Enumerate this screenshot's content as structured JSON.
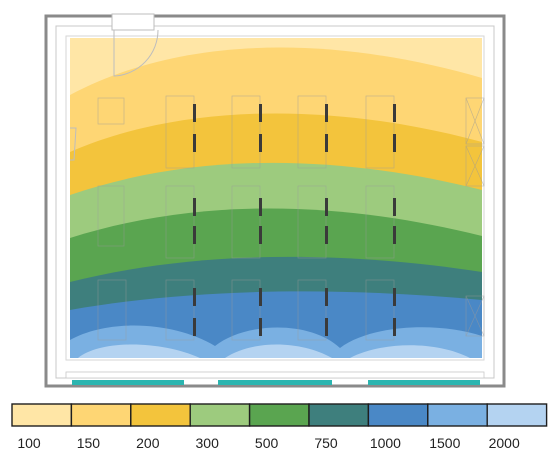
{
  "legend": {
    "swatch_colors": [
      "#ffe6a6",
      "#fed674",
      "#f3c43c",
      "#9dcb7e",
      "#5aa550",
      "#3e7f7d",
      "#4a88c6",
      "#7ab0e2",
      "#b4d3f1"
    ],
    "tick_labels": [
      "100",
      "150",
      "200",
      "300",
      "500",
      "750",
      "1000",
      "1500",
      "2000"
    ]
  },
  "zone_colors": [
    "#ffe6a6",
    "#fed674",
    "#f3c43c",
    "#9dcb7e",
    "#5aa550",
    "#3e7f7d",
    "#4a88c6",
    "#7ab0e2",
    "#b4d3f1"
  ]
}
